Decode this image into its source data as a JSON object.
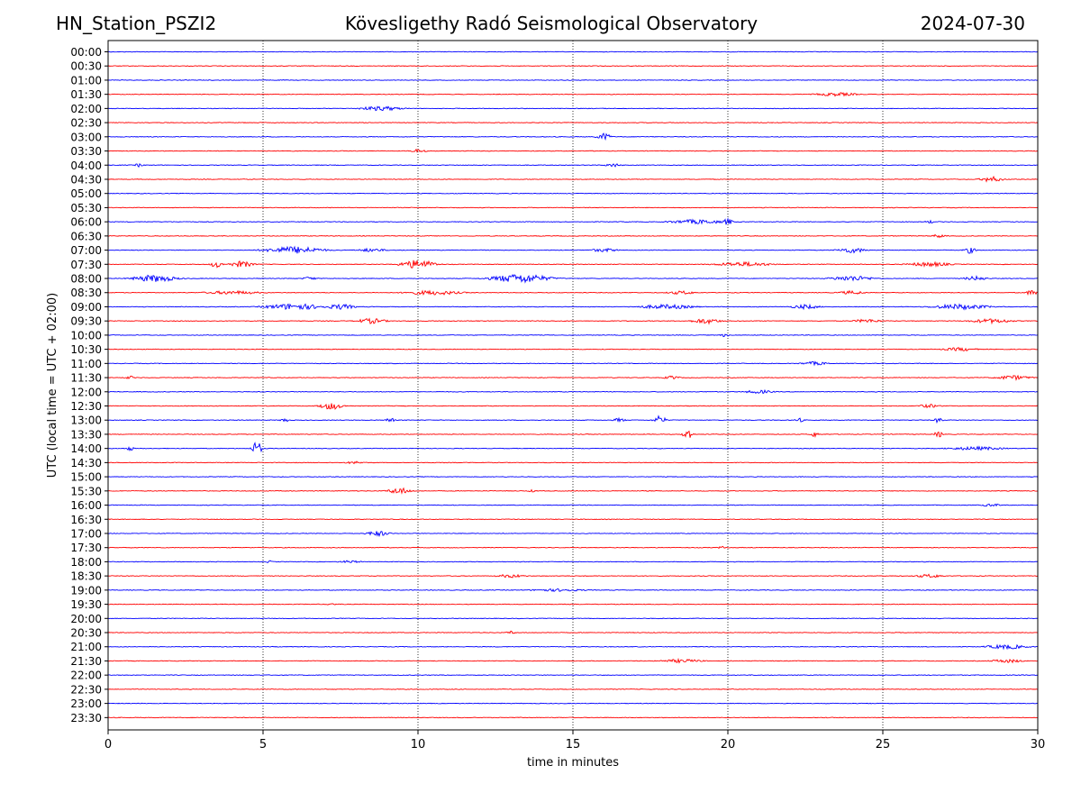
{
  "header": {
    "station": "HN_Station_PSZI2",
    "observatory": "Kövesligethy Radó Seismological Observatory",
    "date": "2024-07-30"
  },
  "chart_data": {
    "type": "line",
    "title": "Kövesligethy Radó Seismological Observatory",
    "xlabel": "time in minutes",
    "ylabel": "UTC (local time = UTC + 02:00)",
    "xlim": [
      0,
      30
    ],
    "xticks": [
      "0",
      "5",
      "10",
      "15",
      "20",
      "25",
      "30"
    ],
    "xtick_values": [
      0,
      5,
      10,
      15,
      20,
      25,
      30
    ],
    "gridlines_x": [
      5,
      10,
      15,
      20,
      25
    ],
    "trace_colors": [
      "#0000ff",
      "#ff0000"
    ],
    "rows": [
      {
        "label": "00:00",
        "color": "#0000ff",
        "events": []
      },
      {
        "label": "00:30",
        "color": "#ff0000",
        "events": []
      },
      {
        "label": "01:00",
        "color": "#0000ff",
        "events": []
      },
      {
        "label": "01:30",
        "color": "#ff0000",
        "events": [
          {
            "t": 23.5,
            "amp": 2,
            "dur": 1.5
          }
        ]
      },
      {
        "label": "02:00",
        "color": "#0000ff",
        "events": [
          {
            "t": 8.8,
            "amp": 2.5,
            "dur": 1.5
          }
        ]
      },
      {
        "label": "02:30",
        "color": "#ff0000",
        "events": []
      },
      {
        "label": "03:00",
        "color": "#0000ff",
        "events": [
          {
            "t": 16.0,
            "amp": 4,
            "dur": 0.5
          }
        ]
      },
      {
        "label": "03:30",
        "color": "#ff0000",
        "events": [
          {
            "t": 10.0,
            "amp": 2,
            "dur": 0.6
          }
        ]
      },
      {
        "label": "04:00",
        "color": "#0000ff",
        "events": [
          {
            "t": 1.0,
            "amp": 2,
            "dur": 0.3
          },
          {
            "t": 16.3,
            "amp": 2,
            "dur": 0.6
          }
        ]
      },
      {
        "label": "04:30",
        "color": "#ff0000",
        "events": [
          {
            "t": 28.5,
            "amp": 3,
            "dur": 0.8
          }
        ]
      },
      {
        "label": "05:00",
        "color": "#0000ff",
        "events": []
      },
      {
        "label": "05:30",
        "color": "#ff0000",
        "events": []
      },
      {
        "label": "06:00",
        "color": "#0000ff",
        "events": [
          {
            "t": 19.0,
            "amp": 2.5,
            "dur": 2.0
          },
          {
            "t": 20.0,
            "amp": 4,
            "dur": 0.3
          },
          {
            "t": 26.5,
            "amp": 2,
            "dur": 0.3
          }
        ]
      },
      {
        "label": "06:30",
        "color": "#ff0000",
        "events": [
          {
            "t": 26.8,
            "amp": 2,
            "dur": 0.5
          }
        ]
      },
      {
        "label": "07:00",
        "color": "#0000ff",
        "events": [
          {
            "t": 6.0,
            "amp": 4,
            "dur": 2.0
          },
          {
            "t": 8.5,
            "amp": 2,
            "dur": 1.0
          },
          {
            "t": 16.0,
            "amp": 2,
            "dur": 1.0
          },
          {
            "t": 24.0,
            "amp": 3,
            "dur": 1.0
          },
          {
            "t": 27.8,
            "amp": 3.5,
            "dur": 0.4
          }
        ]
      },
      {
        "label": "07:30",
        "color": "#ff0000",
        "events": [
          {
            "t": 3.5,
            "amp": 4,
            "dur": 0.4
          },
          {
            "t": 4.3,
            "amp": 3.5,
            "dur": 0.8
          },
          {
            "t": 10.0,
            "amp": 5,
            "dur": 1.2
          },
          {
            "t": 20.5,
            "amp": 2.5,
            "dur": 2.0
          },
          {
            "t": 26.5,
            "amp": 2.5,
            "dur": 1.5
          }
        ]
      },
      {
        "label": "08:00",
        "color": "#0000ff",
        "events": [
          {
            "t": 1.5,
            "amp": 4,
            "dur": 1.5
          },
          {
            "t": 6.5,
            "amp": 2,
            "dur": 0.5
          },
          {
            "t": 13.3,
            "amp": 5,
            "dur": 2.0
          },
          {
            "t": 24.0,
            "amp": 3,
            "dur": 1.5
          },
          {
            "t": 28.0,
            "amp": 2.5,
            "dur": 0.8
          }
        ]
      },
      {
        "label": "08:30",
        "color": "#ff0000",
        "events": [
          {
            "t": 4.0,
            "amp": 2,
            "dur": 2.0
          },
          {
            "t": 10.5,
            "amp": 2.5,
            "dur": 2.0
          },
          {
            "t": 18.5,
            "amp": 2,
            "dur": 1.0
          },
          {
            "t": 24.0,
            "amp": 2,
            "dur": 1.0
          },
          {
            "t": 29.8,
            "amp": 3,
            "dur": 0.4
          }
        ]
      },
      {
        "label": "09:00",
        "color": "#0000ff",
        "events": [
          {
            "t": 6.0,
            "amp": 3.5,
            "dur": 2.0
          },
          {
            "t": 7.5,
            "amp": 3,
            "dur": 1.0
          },
          {
            "t": 18.0,
            "amp": 2.5,
            "dur": 2.0
          },
          {
            "t": 22.5,
            "amp": 2.5,
            "dur": 1.0
          },
          {
            "t": 27.5,
            "amp": 3,
            "dur": 2.0
          }
        ]
      },
      {
        "label": "09:30",
        "color": "#ff0000",
        "events": [
          {
            "t": 8.5,
            "amp": 3,
            "dur": 1.0
          },
          {
            "t": 19.3,
            "amp": 3,
            "dur": 1.0
          },
          {
            "t": 24.5,
            "amp": 2,
            "dur": 1.0
          },
          {
            "t": 28.5,
            "amp": 2.5,
            "dur": 1.5
          }
        ]
      },
      {
        "label": "10:00",
        "color": "#0000ff",
        "events": [
          {
            "t": 19.9,
            "amp": 2,
            "dur": 0.3
          }
        ]
      },
      {
        "label": "10:30",
        "color": "#ff0000",
        "events": [
          {
            "t": 27.5,
            "amp": 2,
            "dur": 1.2
          }
        ]
      },
      {
        "label": "11:00",
        "color": "#0000ff",
        "events": [
          {
            "t": 22.8,
            "amp": 2,
            "dur": 1.0
          }
        ]
      },
      {
        "label": "11:30",
        "color": "#ff0000",
        "events": [
          {
            "t": 0.7,
            "amp": 2,
            "dur": 0.3
          },
          {
            "t": 18.2,
            "amp": 2,
            "dur": 0.6
          },
          {
            "t": 29.2,
            "amp": 2.5,
            "dur": 1.2
          }
        ]
      },
      {
        "label": "12:00",
        "color": "#0000ff",
        "events": [
          {
            "t": 21.0,
            "amp": 2,
            "dur": 1.0
          }
        ]
      },
      {
        "label": "12:30",
        "color": "#ff0000",
        "events": [
          {
            "t": 7.2,
            "amp": 4,
            "dur": 0.8
          },
          {
            "t": 26.5,
            "amp": 2,
            "dur": 0.8
          }
        ]
      },
      {
        "label": "13:00",
        "color": "#0000ff",
        "events": [
          {
            "t": 5.7,
            "amp": 2.5,
            "dur": 0.3
          },
          {
            "t": 9.1,
            "amp": 3,
            "dur": 0.3
          },
          {
            "t": 16.5,
            "amp": 2.5,
            "dur": 0.4
          },
          {
            "t": 17.8,
            "amp": 5,
            "dur": 0.4
          },
          {
            "t": 22.3,
            "amp": 2.5,
            "dur": 0.3
          },
          {
            "t": 26.8,
            "amp": 3,
            "dur": 0.3
          }
        ]
      },
      {
        "label": "13:30",
        "color": "#ff0000",
        "events": [
          {
            "t": 18.7,
            "amp": 7,
            "dur": 0.3
          },
          {
            "t": 22.8,
            "amp": 3,
            "dur": 0.3
          },
          {
            "t": 26.8,
            "amp": 3.5,
            "dur": 0.3
          }
        ]
      },
      {
        "label": "14:00",
        "color": "#0000ff",
        "events": [
          {
            "t": 0.7,
            "amp": 2.5,
            "dur": 0.3
          },
          {
            "t": 4.8,
            "amp": 9,
            "dur": 0.3
          },
          {
            "t": 28.0,
            "amp": 2,
            "dur": 2.0
          }
        ]
      },
      {
        "label": "14:30",
        "color": "#ff0000",
        "events": [
          {
            "t": 8.0,
            "amp": 1.5,
            "dur": 0.8
          }
        ]
      },
      {
        "label": "15:00",
        "color": "#0000ff",
        "events": []
      },
      {
        "label": "15:30",
        "color": "#ff0000",
        "events": [
          {
            "t": 9.4,
            "amp": 3.5,
            "dur": 0.8
          },
          {
            "t": 13.7,
            "amp": 1.5,
            "dur": 0.3
          }
        ]
      },
      {
        "label": "16:00",
        "color": "#0000ff",
        "events": [
          {
            "t": 28.5,
            "amp": 1.5,
            "dur": 0.8
          }
        ]
      },
      {
        "label": "16:30",
        "color": "#ff0000",
        "events": []
      },
      {
        "label": "17:00",
        "color": "#0000ff",
        "events": [
          {
            "t": 8.7,
            "amp": 3,
            "dur": 0.8
          }
        ]
      },
      {
        "label": "17:30",
        "color": "#ff0000",
        "events": [
          {
            "t": 19.8,
            "amp": 2,
            "dur": 0.2
          }
        ]
      },
      {
        "label": "18:00",
        "color": "#0000ff",
        "events": [
          {
            "t": 5.2,
            "amp": 1.5,
            "dur": 0.2
          },
          {
            "t": 7.8,
            "amp": 1.5,
            "dur": 0.8
          }
        ]
      },
      {
        "label": "18:30",
        "color": "#ff0000",
        "events": [
          {
            "t": 13.0,
            "amp": 2,
            "dur": 1.0
          },
          {
            "t": 26.5,
            "amp": 2,
            "dur": 1.0
          }
        ]
      },
      {
        "label": "19:00",
        "color": "#0000ff",
        "events": [
          {
            "t": 14.5,
            "amp": 1.5,
            "dur": 2.0
          }
        ]
      },
      {
        "label": "19:30",
        "color": "#ff0000",
        "events": [
          {
            "t": 7.2,
            "amp": 1.5,
            "dur": 0.3
          }
        ]
      },
      {
        "label": "20:00",
        "color": "#0000ff",
        "events": []
      },
      {
        "label": "20:30",
        "color": "#ff0000",
        "events": [
          {
            "t": 13.0,
            "amp": 2,
            "dur": 0.3
          }
        ]
      },
      {
        "label": "21:00",
        "color": "#0000ff",
        "events": [
          {
            "t": 29.0,
            "amp": 2.5,
            "dur": 1.5
          }
        ]
      },
      {
        "label": "21:30",
        "color": "#ff0000",
        "events": [
          {
            "t": 18.5,
            "amp": 2,
            "dur": 1.5
          },
          {
            "t": 29.0,
            "amp": 2,
            "dur": 1.2
          }
        ]
      },
      {
        "label": "22:00",
        "color": "#0000ff",
        "events": []
      },
      {
        "label": "22:30",
        "color": "#ff0000",
        "events": []
      },
      {
        "label": "23:00",
        "color": "#0000ff",
        "events": []
      },
      {
        "label": "23:30",
        "color": "#ff0000",
        "events": []
      }
    ]
  }
}
